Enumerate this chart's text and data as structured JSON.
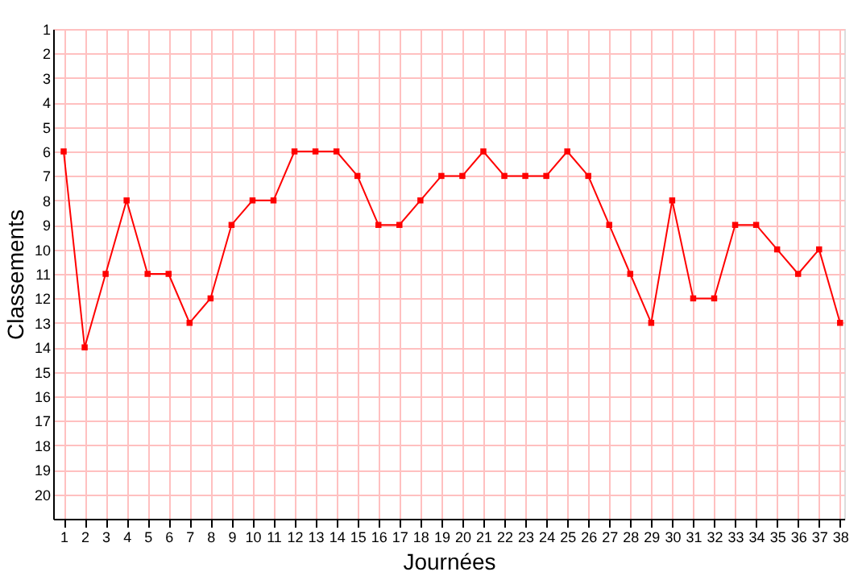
{
  "chart_data": {
    "type": "line",
    "xlabel": "Journées",
    "ylabel": "Classements",
    "x": [
      1,
      2,
      3,
      4,
      5,
      6,
      7,
      8,
      9,
      10,
      11,
      12,
      13,
      14,
      15,
      16,
      17,
      18,
      19,
      20,
      21,
      22,
      23,
      24,
      25,
      26,
      27,
      28,
      29,
      30,
      31,
      32,
      33,
      34,
      35,
      36,
      37,
      38
    ],
    "series": [
      {
        "color": "#ff0000",
        "values": [
          6,
          14,
          11,
          8,
          11,
          11,
          13,
          12,
          9,
          8,
          8,
          6,
          6,
          6,
          7,
          9,
          9,
          8,
          7,
          7,
          6,
          7,
          7,
          7,
          6,
          7,
          9,
          11,
          13,
          8,
          12,
          12,
          9,
          9,
          10,
          11,
          10,
          13
        ]
      }
    ],
    "xlim": [
      0.5,
      38.2
    ],
    "ylim": [
      21,
      1
    ],
    "xticks": [
      1,
      2,
      3,
      4,
      5,
      6,
      7,
      8,
      9,
      10,
      11,
      12,
      13,
      14,
      15,
      16,
      17,
      18,
      19,
      20,
      21,
      22,
      23,
      24,
      25,
      26,
      27,
      28,
      29,
      30,
      31,
      32,
      33,
      34,
      35,
      36,
      37,
      38
    ],
    "yticks": [
      1,
      2,
      3,
      4,
      5,
      6,
      7,
      8,
      9,
      10,
      11,
      12,
      13,
      14,
      15,
      16,
      17,
      18,
      19,
      20
    ],
    "grid": true,
    "marker": "square",
    "line_style": "solid"
  }
}
